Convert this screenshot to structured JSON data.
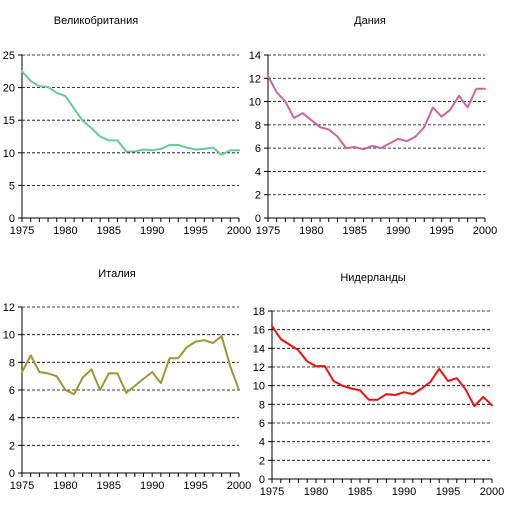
{
  "chart_data": [
    {
      "type": "line",
      "title": "Великобритания",
      "color": "#66cc99",
      "x": [
        1975,
        1976,
        1977,
        1978,
        1979,
        1980,
        1981,
        1982,
        1983,
        1984,
        1985,
        1986,
        1987,
        1988,
        1989,
        1990,
        1991,
        1992,
        1993,
        1994,
        1995,
        1996,
        1997,
        1998,
        1999,
        2000
      ],
      "values": [
        22.5,
        21.0,
        20.2,
        20.1,
        19.2,
        18.7,
        16.8,
        14.9,
        13.8,
        12.5,
        11.9,
        11.9,
        10.2,
        10.2,
        10.5,
        10.4,
        10.6,
        11.2,
        11.2,
        10.8,
        10.5,
        10.6,
        10.8,
        9.7,
        10.4,
        10.4
      ],
      "ylim": [
        0,
        25
      ],
      "yticks": [
        "0",
        "5",
        "10",
        "15",
        "20",
        "25"
      ],
      "xticks": [
        "1975",
        "1980",
        "1985",
        "1990",
        "1995",
        "2000"
      ]
    },
    {
      "type": "line",
      "title": "Дания",
      "color": "#cc6699",
      "x": [
        1975,
        1976,
        1977,
        1978,
        1979,
        1980,
        1981,
        1982,
        1983,
        1984,
        1985,
        1986,
        1987,
        1988,
        1989,
        1990,
        1991,
        1992,
        1993,
        1994,
        1995,
        1996,
        1997,
        1998,
        1999,
        2000
      ],
      "values": [
        12.2,
        10.8,
        10.0,
        8.6,
        9.0,
        8.4,
        7.8,
        7.6,
        7.0,
        6.0,
        6.1,
        5.9,
        6.2,
        6.0,
        6.4,
        6.8,
        6.6,
        7.0,
        7.8,
        9.5,
        8.7,
        9.3,
        10.5,
        9.5,
        11.1,
        11.1
      ],
      "ylim": [
        0,
        14
      ],
      "yticks": [
        "0",
        "2",
        "4",
        "6",
        "8",
        "10",
        "12",
        "14"
      ],
      "xticks": [
        "1975",
        "1980",
        "1985",
        "1990",
        "1995",
        "2000"
      ]
    },
    {
      "type": "line",
      "title": "Италия",
      "color": "#999933",
      "x": [
        1975,
        1976,
        1977,
        1978,
        1979,
        1980,
        1981,
        1982,
        1983,
        1984,
        1985,
        1986,
        1987,
        1988,
        1989,
        1990,
        1991,
        1992,
        1993,
        1994,
        1995,
        1996,
        1997,
        1998,
        1999,
        2000
      ],
      "values": [
        7.3,
        8.5,
        7.3,
        7.2,
        7.0,
        6.0,
        5.7,
        6.9,
        7.5,
        6.0,
        7.2,
        7.2,
        5.8,
        6.3,
        6.8,
        7.3,
        6.5,
        8.3,
        8.3,
        9.1,
        9.5,
        9.6,
        9.4,
        9.9,
        7.7,
        6.0
      ],
      "ylim": [
        0,
        12
      ],
      "yticks": [
        "0",
        "2",
        "4",
        "6",
        "8",
        "10",
        "12"
      ],
      "xticks": [
        "1975",
        "1980",
        "1985",
        "1990",
        "1995",
        "2000"
      ]
    },
    {
      "type": "line",
      "title": "Нидерланды",
      "color": "#ee1111",
      "x": [
        1975,
        1976,
        1977,
        1978,
        1979,
        1980,
        1981,
        1982,
        1983,
        1984,
        1985,
        1986,
        1987,
        1988,
        1989,
        1990,
        1991,
        1992,
        1993,
        1994,
        1995,
        1996,
        1997,
        1998,
        1999,
        2000
      ],
      "values": [
        16.4,
        15.0,
        14.4,
        13.8,
        12.6,
        12.1,
        12.1,
        10.5,
        10.0,
        9.7,
        9.5,
        8.5,
        8.5,
        9.1,
        9.0,
        9.3,
        9.1,
        9.7,
        10.4,
        11.8,
        10.5,
        10.8,
        9.6,
        7.8,
        8.8,
        7.9
      ],
      "ylim": [
        0,
        18
      ],
      "yticks": [
        "0",
        "2",
        "4",
        "6",
        "8",
        "10",
        "12",
        "14",
        "16",
        "18"
      ],
      "xticks": [
        "1975",
        "1980",
        "1985",
        "1990",
        "1995",
        "2000"
      ]
    }
  ]
}
